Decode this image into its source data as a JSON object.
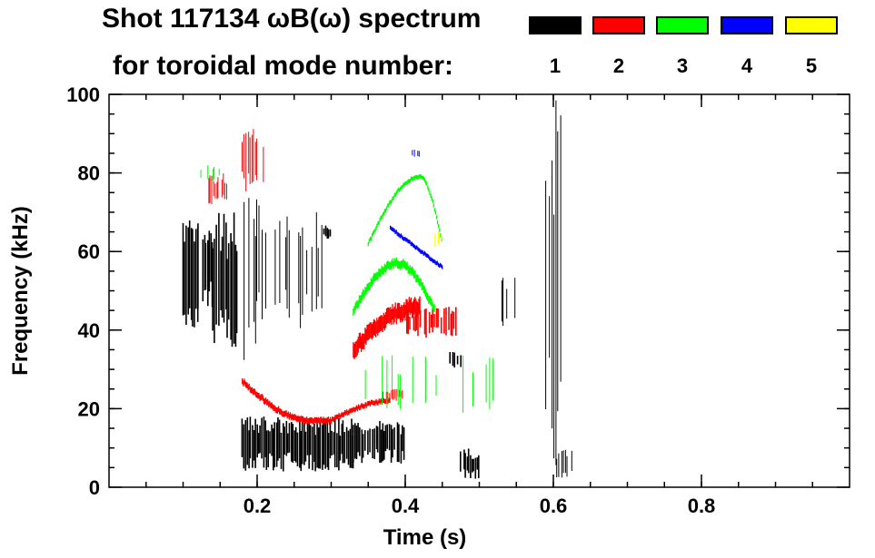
{
  "chart_data": {
    "type": "heatmap",
    "title_line1": "Shot 117134 ωB(ω) spectrum",
    "title_line2": "for toroidal mode number:",
    "xlabel": "Time (s)",
    "ylabel": "Frequency (kHz)",
    "xlim": [
      0.0,
      1.0
    ],
    "ylim": [
      0,
      100
    ],
    "xticks": [
      0.2,
      0.4,
      0.6,
      0.8
    ],
    "yticks": [
      0,
      20,
      40,
      60,
      80,
      100
    ],
    "x_minor_step": 0.05,
    "y_minor_step": 5,
    "legend": [
      {
        "label": "1",
        "color": "#000000"
      },
      {
        "label": "2",
        "color": "#ff0000"
      },
      {
        "label": "3",
        "color": "#00ff00"
      },
      {
        "label": "4",
        "color": "#0000ff"
      },
      {
        "label": "5",
        "color": "#ffff00"
      }
    ],
    "modes": [
      {
        "n": 1,
        "color": "#000000",
        "regions": [
          {
            "t": [
              0.1,
              0.12
            ],
            "f": [
              38,
              68
            ],
            "density": 0.9
          },
          {
            "t": [
              0.12,
              0.14
            ],
            "f": [
              45,
              68
            ],
            "density": 0.8
          },
          {
            "t": [
              0.14,
              0.175
            ],
            "f": [
              35,
              70
            ],
            "density": 0.7
          },
          {
            "t": [
              0.18,
              0.2
            ],
            "f": [
              30,
              82
            ],
            "density": 0.6
          },
          {
            "t": [
              0.2,
              0.23
            ],
            "f": [
              35,
              80
            ],
            "density": 0.4
          },
          {
            "t": [
              0.23,
              0.29
            ],
            "f": [
              40,
              70
            ],
            "density": 0.25
          },
          {
            "t": [
              0.29,
              0.3
            ],
            "f": [
              63,
              67
            ],
            "density": 0.8
          },
          {
            "t": [
              0.18,
              0.33
            ],
            "f": [
              4,
              18
            ],
            "density": 0.85
          },
          {
            "t": [
              0.33,
              0.4
            ],
            "f": [
              6,
              17
            ],
            "density": 0.8
          },
          {
            "t": [
              0.46,
              0.48
            ],
            "f": [
              30,
              35
            ],
            "density": 0.7
          },
          {
            "t": [
              0.475,
              0.5
            ],
            "f": [
              2,
              10
            ],
            "density": 0.8
          },
          {
            "t": [
              0.59,
              0.61
            ],
            "f": [
              5,
              100
            ],
            "density": 0.55
          },
          {
            "t": [
              0.605,
              0.625
            ],
            "f": [
              2,
              10
            ],
            "density": 0.5
          },
          {
            "t": [
              0.53,
              0.56
            ],
            "f": [
              40,
              55
            ],
            "density": 0.12
          }
        ]
      },
      {
        "n": 2,
        "color": "#ff0000",
        "regions": [
          {
            "t": [
              0.13,
              0.16
            ],
            "f": [
              72,
              80
            ],
            "density": 0.6
          },
          {
            "t": [
              0.18,
              0.21
            ],
            "f": [
              75,
              92
            ],
            "density": 0.5
          },
          {
            "t": [
              0.18,
              0.3
            ],
            "f": [
              17,
              27
            ],
            "shape": "arc",
            "peak": 0.3,
            "width": 1.5
          },
          {
            "t": [
              0.3,
              0.38
            ],
            "f": [
              17,
              22
            ],
            "shape": "rise",
            "width": 1.2
          },
          {
            "t": [
              0.37,
              0.4
            ],
            "f": [
              22,
              25
            ],
            "density": 0.6
          },
          {
            "t": [
              0.33,
              0.42
            ],
            "f": [
              35,
              46
            ],
            "shape": "rise",
            "width": 4
          },
          {
            "t": [
              0.4,
              0.47
            ],
            "f": [
              38,
              46
            ],
            "density": 0.7
          }
        ]
      },
      {
        "n": 3,
        "color": "#00ff00",
        "regions": [
          {
            "t": [
              0.33,
              0.44
            ],
            "f": [
              45,
              57
            ],
            "shape": "arch",
            "peak": 0.39,
            "width": 2
          },
          {
            "t": [
              0.35,
              0.45
            ],
            "f": [
              62,
              79
            ],
            "shape": "arch",
            "peak": 0.42,
            "width": 1
          },
          {
            "t": [
              0.12,
              0.15
            ],
            "f": [
              78,
              82
            ],
            "density": 0.2
          },
          {
            "t": [
              0.34,
              0.52
            ],
            "f": [
              18,
              34
            ],
            "density": 0.06
          }
        ]
      },
      {
        "n": 4,
        "color": "#0000ff",
        "regions": [
          {
            "t": [
              0.38,
              0.45
            ],
            "f": [
              56,
              66
            ],
            "shape": "fall",
            "width": 1
          },
          {
            "t": [
              0.41,
              0.42
            ],
            "f": [
              84,
              86
            ],
            "density": 0.5
          }
        ]
      },
      {
        "n": 5,
        "color": "#ffff00",
        "regions": [
          {
            "t": [
              0.44,
              0.45
            ],
            "f": [
              61,
              66
            ],
            "density": 0.6
          }
        ]
      }
    ]
  }
}
